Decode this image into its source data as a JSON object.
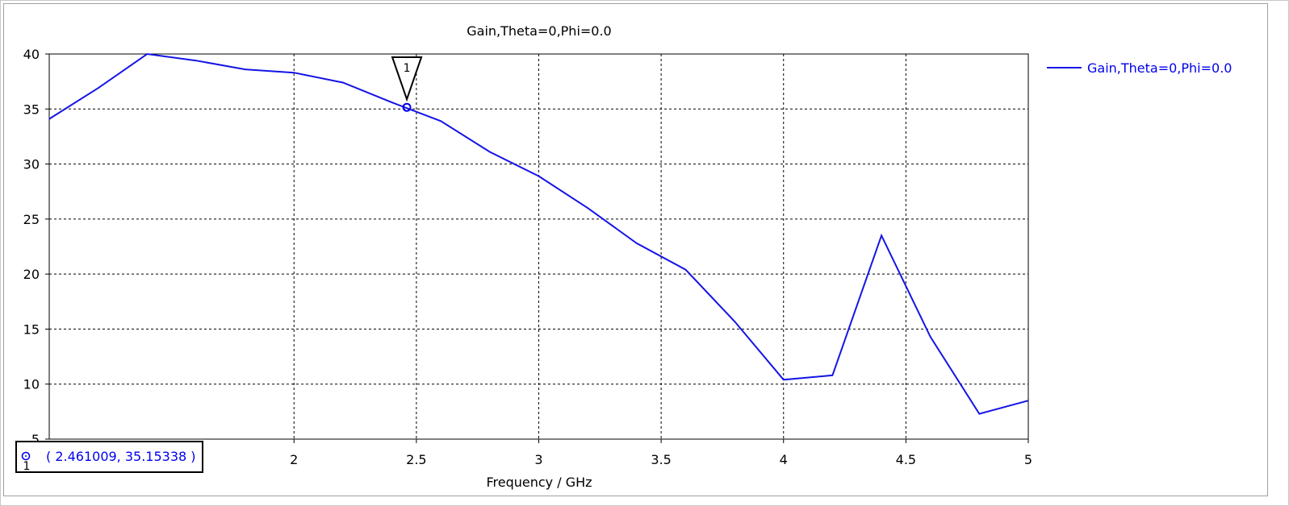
{
  "chart_data": {
    "type": "line",
    "title": "Gain,Theta=0,Phi=0.0",
    "xlabel": "Frequency / GHz",
    "ylabel": "",
    "xlim": [
      1.0,
      5.0
    ],
    "ylim": [
      5,
      40
    ],
    "x_ticks": [
      "2",
      "2.5",
      "3",
      "3.5",
      "4",
      "4.5",
      "5"
    ],
    "y_ticks": [
      "40",
      "35",
      "30",
      "25",
      "20",
      "15",
      "10",
      "5"
    ],
    "grid": true,
    "legend_position": "top-right",
    "series": [
      {
        "name": "Gain,Theta=0,Phi=0.0",
        "color": "#1414e6",
        "x": [
          1.0,
          1.2,
          1.4,
          1.6,
          1.8,
          2.0,
          2.2,
          2.4,
          2.6,
          2.8,
          3.0,
          3.2,
          3.4,
          3.6,
          3.8,
          4.0,
          4.2,
          4.4,
          4.6,
          4.8,
          5.0
        ],
        "y": [
          34.1,
          36.9,
          40.0,
          39.4,
          38.6,
          38.3,
          37.4,
          35.6,
          33.9,
          31.1,
          28.9,
          26.0,
          22.8,
          20.4,
          15.7,
          10.4,
          10.8,
          23.5,
          14.3,
          7.3,
          8.5
        ]
      }
    ],
    "markers": [
      {
        "id": "1",
        "x": 2.461009,
        "y": 35.15338
      }
    ],
    "readout": {
      "marker_label": "1",
      "text": "( 2.461009, 35.15338 )"
    }
  }
}
